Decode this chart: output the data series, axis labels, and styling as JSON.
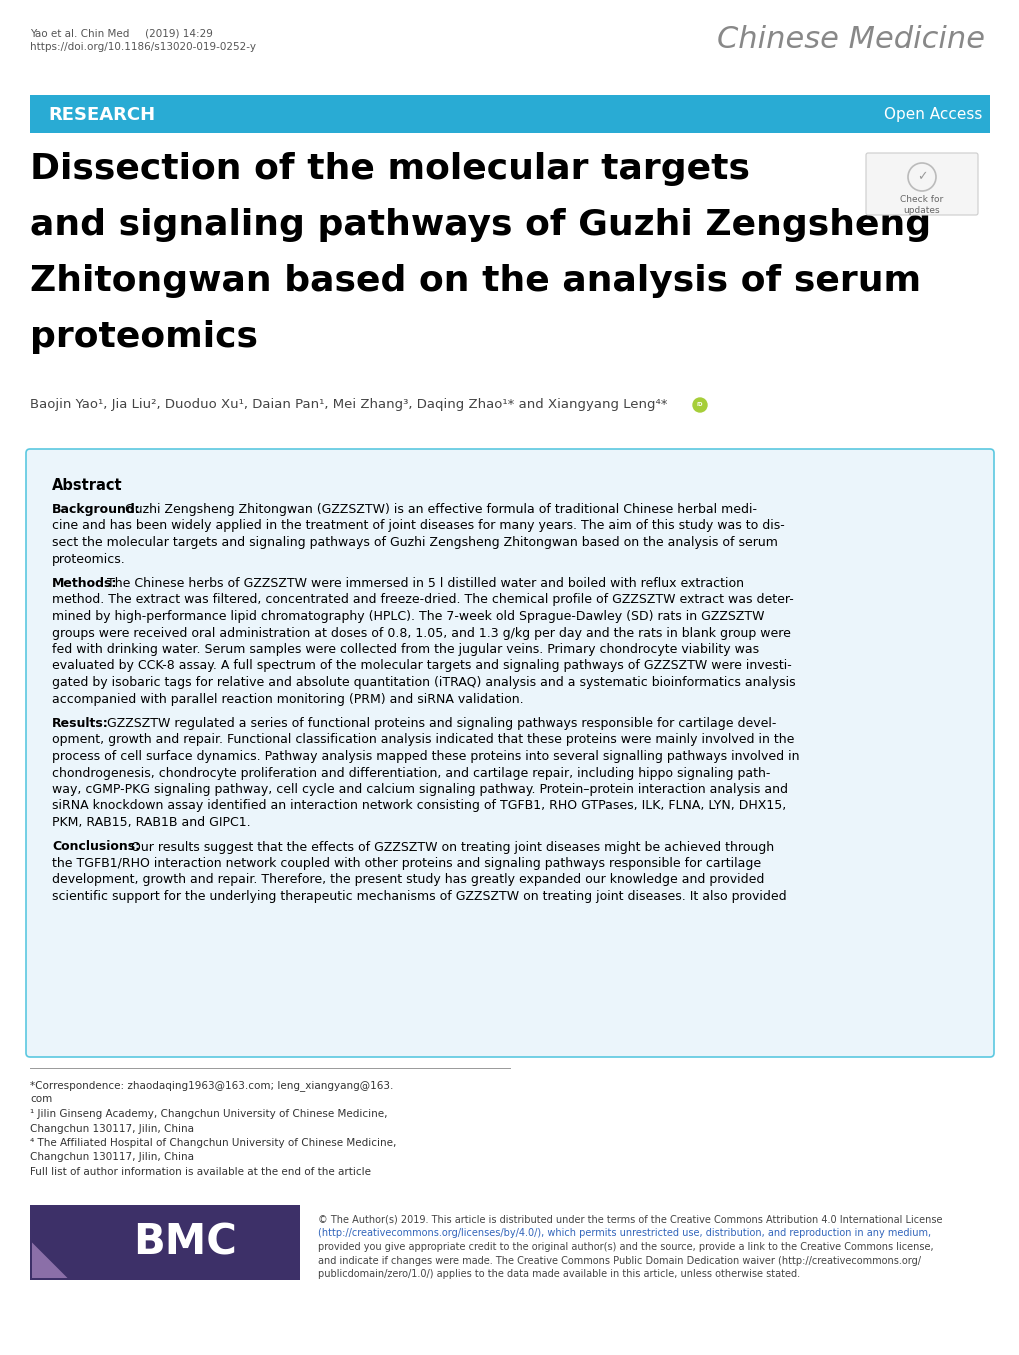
{
  "journal_info_line1": "Yao et al. Chin Med   (2019) 14:29",
  "journal_info_line2": "https://doi.org/10.1186/s13020-019-0252-y",
  "journal_name": "Chinese Medicine",
  "banner_text": "RESEARCH",
  "banner_right": "Open Access",
  "banner_color": "#29ABD4",
  "main_title_lines": [
    "Dissection of the molecular targets",
    "and signaling pathways of Guzhi Zengsheng",
    "Zhitongwan based on the analysis of serum",
    "proteomics"
  ],
  "authors": "Baojin Yao¹, Jia Liu², Duoduo Xu¹, Daian Pan¹, Mei Zhang³, Daqing Zhao¹* and Xiangyang Leng⁴*",
  "abstract_title": "Abstract",
  "background_label": "Background:",
  "background_lines": [
    "  Guzhi Zengsheng Zhitongwan (GZZSZTW) is an effective formula of traditional Chinese herbal medi-",
    "cine and has been widely applied in the treatment of joint diseases for many years. The aim of this study was to dis-",
    "sect the molecular targets and signaling pathways of Guzhi Zengsheng Zhitongwan based on the analysis of serum",
    "proteomics."
  ],
  "methods_label": "Methods:",
  "methods_lines": [
    "  The Chinese herbs of GZZSZTW were immersed in 5 l distilled water and boiled with reflux extraction",
    "method. The extract was filtered, concentrated and freeze-dried. The chemical profile of GZZSZTW extract was deter-",
    "mined by high-performance lipid chromatography (HPLC). The 7-week old Sprague-Dawley (SD) rats in GZZSZTW",
    "groups were received oral administration at doses of 0.8, 1.05, and 1.3 g/kg per day and the rats in blank group were",
    "fed with drinking water. Serum samples were collected from the jugular veins. Primary chondrocyte viability was",
    "evaluated by CCK-8 assay. A full spectrum of the molecular targets and signaling pathways of GZZSZTW were investi-",
    "gated by isobaric tags for relative and absolute quantitation (iTRAQ) analysis and a systematic bioinformatics analysis",
    "accompanied with parallel reaction monitoring (PRM) and siRNA validation."
  ],
  "results_label": "Results:",
  "results_lines": [
    "  GZZSZTW regulated a series of functional proteins and signaling pathways responsible for cartilage devel-",
    "opment, growth and repair. Functional classification analysis indicated that these proteins were mainly involved in the",
    "process of cell surface dynamics. Pathway analysis mapped these proteins into several signalling pathways involved in",
    "chondrogenesis, chondrocyte proliferation and differentiation, and cartilage repair, including hippo signaling path-",
    "way, cGMP-PKG signaling pathway, cell cycle and calcium signaling pathway. Protein–protein interaction analysis and",
    "siRNA knockdown assay identified an interaction network consisting of TGFB1, RHO GTPases, ILK, FLNA, LYN, DHX15,",
    "PKM, RAB15, RAB1B and GIPC1."
  ],
  "conclusions_label": "Conclusions:",
  "conclusions_lines": [
    "  Our results suggest that the effects of GZZSZTW on treating joint diseases might be achieved through",
    "the TGFB1/RHO interaction network coupled with other proteins and signaling pathways responsible for cartilage",
    "development, growth and repair. Therefore, the present study has greatly expanded our knowledge and provided",
    "scientific support for the underlying therapeutic mechanisms of GZZSZTW on treating joint diseases. It also provided"
  ],
  "correspondence_lines": [
    "*Correspondence: zhaodaqing1963@163.com; leng_xiangyang@163.",
    "com",
    "¹ Jilin Ginseng Academy, Changchun University of Chinese Medicine,",
    "Changchun 130117, Jilin, China",
    "⁴ The Affiliated Hospital of Changchun University of Chinese Medicine,",
    "Changchun 130117, Jilin, China",
    "Full list of author information is available at the end of the article"
  ],
  "bmc_text_lines": [
    "© The Author(s) 2019. This article is distributed under the terms of the Creative Commons Attribution 4.0 International License",
    "(http://creativecommons.org/licenses/by/4.0/), which permits unrestricted use, distribution, and reproduction in any medium,",
    "provided you give appropriate credit to the original author(s) and the source, provide a link to the Creative Commons license,",
    "and indicate if changes were made. The Creative Commons Public Domain Dedication waiver (http://creativecommons.org/",
    "publicdomain/zero/1.0/) applies to the data made available in this article, unless otherwise stated."
  ],
  "abstract_box_color": "#EBF5FB",
  "abstract_border_color": "#5BC8E0",
  "bg_color": "#FFFFFF",
  "text_color": "#000000",
  "title_color": "#000000",
  "bmc_dark_color": "#3D3068",
  "bmc_purple_color": "#8B6FA8"
}
